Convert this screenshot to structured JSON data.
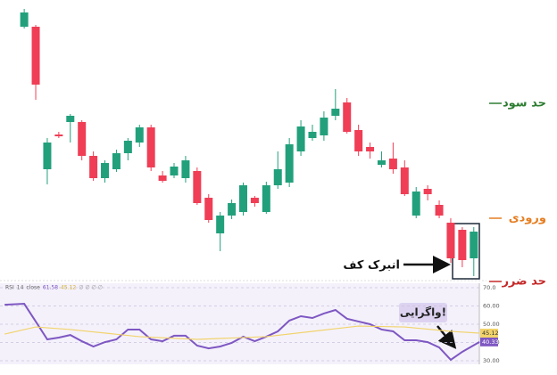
{
  "chart_data": [
    {
      "type": "candlestick",
      "xlim": [
        -2.1,
        40.1
      ],
      "ylim": [
        0,
        320
      ],
      "up_color": "#22a07c",
      "down_color": "#ef3e55",
      "open": [
        290,
        290,
        130,
        169,
        183,
        183,
        145,
        120,
        130,
        148,
        160,
        177,
        123,
        123,
        120,
        128,
        98,
        58,
        78,
        82,
        98,
        82,
        112,
        115,
        150,
        165,
        168,
        190,
        205,
        174,
        155,
        135,
        142,
        132,
        78,
        108,
        90,
        70,
        62,
        30
      ],
      "high": [
        310,
        292,
        165,
        172,
        192,
        185,
        150,
        140,
        152,
        165,
        180,
        180,
        128,
        137,
        145,
        132,
        102,
        82,
        96,
        115,
        100,
        116,
        150,
        165,
        185,
        180,
        195,
        220,
        210,
        180,
        160,
        150,
        160,
        140,
        110,
        112,
        95,
        75,
        65,
        65
      ],
      "low": [
        288,
        208,
        113,
        165,
        160,
        140,
        117,
        115,
        127,
        140,
        155,
        128,
        115,
        120,
        115,
        90,
        70,
        38,
        74,
        78,
        88,
        80,
        108,
        110,
        145,
        162,
        162,
        185,
        170,
        145,
        142,
        132,
        125,
        100,
        75,
        95,
        75,
        25,
        20,
        10
      ],
      "close": [
        306,
        225,
        160,
        167,
        190,
        145,
        120,
        137,
        148,
        162,
        177,
        132,
        117,
        133,
        140,
        92,
        73,
        78,
        92,
        112,
        92,
        112,
        130,
        158,
        178,
        172,
        188,
        198,
        172,
        150,
        150,
        140,
        130,
        102,
        105,
        102,
        78,
        30,
        28,
        60
      ],
      "levels": [
        {
          "label": "حد سود",
          "value": 204,
          "color": "#2e7d32"
        },
        {
          "label": "ورودی",
          "value": 75,
          "color": "#e67e22"
        },
        {
          "label": "حد ضرر",
          "value": 4,
          "color": "#c62828"
        }
      ],
      "annotation": "انبرک کف"
    },
    {
      "type": "line",
      "legend": [
        "RSI",
        "14",
        "close",
        "61.58",
        "45.12",
        "∅ ∅ ∅ ∅"
      ],
      "xlim": [
        -2.1,
        40.1
      ],
      "ylim": [
        30,
        70
      ],
      "yticks": [
        {
          "value": 70,
          "label": "70.0"
        },
        {
          "value": 60,
          "label": "60.00"
        },
        {
          "value": 50,
          "label": "50.00"
        },
        {
          "value": 40,
          "label": "40.00"
        },
        {
          "value": 30,
          "label": "30.00"
        }
      ],
      "series": [
        {
          "name": "RSI",
          "color": "#7e57c2",
          "x": [
            -1.7,
            0,
            1,
            2,
            3,
            4,
            5,
            6,
            7,
            8,
            9,
            10,
            11,
            12,
            13,
            14,
            15,
            16,
            17,
            18,
            19,
            20,
            21,
            22,
            23,
            24,
            25,
            26,
            27,
            28,
            29,
            30,
            31,
            32,
            33,
            34,
            35,
            36,
            37,
            38,
            39.5
          ],
          "values": [
            60.7,
            61.2,
            51.5,
            41.7,
            42.7,
            44.1,
            40.7,
            37.8,
            40.2,
            41.7,
            47.1,
            47.1,
            41.7,
            40.7,
            43.7,
            43.7,
            38.3,
            36.8,
            37.8,
            39.8,
            43.2,
            40.7,
            43.2,
            46.1,
            52,
            54.4,
            53.4,
            55.9,
            57.8,
            53,
            51.5,
            50,
            47.1,
            46.1,
            41.2,
            41.2,
            40.2,
            37.3,
            30.5,
            34.9,
            40.33
          ]
        },
        {
          "name": "MA",
          "color": "#f2d36b",
          "x": [
            -1.7,
            1,
            4,
            10,
            15,
            21,
            25,
            29,
            33,
            37,
            39.5
          ],
          "values": [
            44.6,
            48.5,
            47.1,
            43.2,
            41.7,
            43.2,
            46.1,
            49,
            48.5,
            46.1,
            45.12
          ]
        }
      ],
      "annotation": "واگرایی!"
    }
  ]
}
